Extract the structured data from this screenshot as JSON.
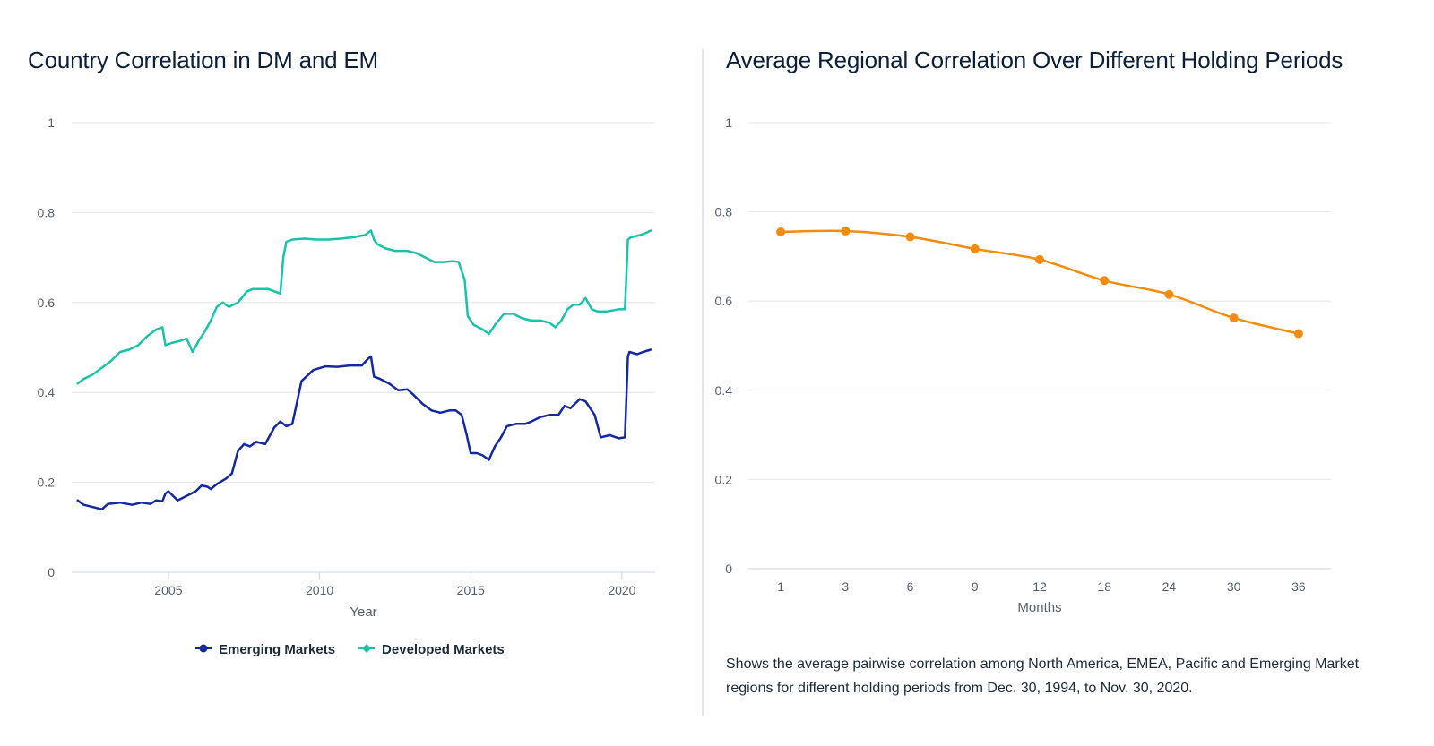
{
  "charts": [
    {
      "title": "Country Correlation in DM and EM",
      "chart_data": {
        "type": "line",
        "title": "Country Correlation in DM and EM",
        "xlabel": "Year",
        "ylabel": "",
        "xlim": [
          2001.8,
          2021.1
        ],
        "ylim": [
          0,
          1
        ],
        "x_ticks": [
          "2005",
          "2010",
          "2015",
          "2020"
        ],
        "y_ticks": [
          "0",
          "0.2",
          "0.4",
          "0.6",
          "0.8",
          "1"
        ],
        "grid": true,
        "legend_position": "bottom",
        "series": [
          {
            "name": "Emerging Markets",
            "color": "#1428a0",
            "marker": "circle",
            "x": [
              2002.0,
              2002.2,
              2002.5,
              2002.8,
              2003.0,
              2003.4,
              2003.8,
              2004.1,
              2004.4,
              2004.6,
              2004.8,
              2004.9,
              2005.0,
              2005.3,
              2005.6,
              2005.9,
              2006.1,
              2006.3,
              2006.4,
              2006.6,
              2006.9,
              2007.1,
              2007.3,
              2007.5,
              2007.7,
              2007.9,
              2008.2,
              2008.5,
              2008.7,
              2008.8,
              2008.9,
              2009.1,
              2009.4,
              2009.8,
              2010.2,
              2010.6,
              2011.0,
              2011.4,
              2011.6,
              2011.7,
              2011.8,
              2012.0,
              2012.3,
              2012.6,
              2012.9,
              2013.1,
              2013.4,
              2013.7,
              2014.0,
              2014.3,
              2014.5,
              2014.7,
              2014.85,
              2015.0,
              2015.2,
              2015.4,
              2015.6,
              2015.8,
              2016.0,
              2016.2,
              2016.5,
              2016.8,
              2017.0,
              2017.3,
              2017.6,
              2017.9,
              2018.1,
              2018.3,
              2018.6,
              2018.8,
              2018.9,
              2019.1,
              2019.3,
              2019.6,
              2019.9,
              2020.1,
              2020.2,
              2020.25,
              2020.5,
              2020.7,
              2020.95
            ],
            "y": [
              0.16,
              0.15,
              0.145,
              0.14,
              0.152,
              0.155,
              0.15,
              0.155,
              0.152,
              0.16,
              0.158,
              0.175,
              0.18,
              0.16,
              0.17,
              0.18,
              0.193,
              0.19,
              0.185,
              0.196,
              0.208,
              0.22,
              0.27,
              0.285,
              0.28,
              0.29,
              0.285,
              0.322,
              0.335,
              0.33,
              0.325,
              0.33,
              0.425,
              0.45,
              0.458,
              0.457,
              0.46,
              0.46,
              0.475,
              0.48,
              0.435,
              0.43,
              0.42,
              0.405,
              0.407,
              0.395,
              0.375,
              0.36,
              0.355,
              0.36,
              0.36,
              0.35,
              0.31,
              0.265,
              0.265,
              0.26,
              0.25,
              0.28,
              0.3,
              0.325,
              0.33,
              0.33,
              0.335,
              0.345,
              0.35,
              0.35,
              0.37,
              0.365,
              0.385,
              0.38,
              0.37,
              0.35,
              0.3,
              0.305,
              0.298,
              0.3,
              0.48,
              0.49,
              0.485,
              0.49,
              0.495
            ]
          },
          {
            "name": "Developed Markets",
            "color": "#19c2a8",
            "marker": "diamond",
            "x": [
              2002.0,
              2002.2,
              2002.5,
              2002.8,
              2003.1,
              2003.4,
              2003.7,
              2004.0,
              2004.3,
              2004.6,
              2004.8,
              2004.9,
              2005.1,
              2005.4,
              2005.6,
              2005.8,
              2006.0,
              2006.2,
              2006.4,
              2006.6,
              2006.8,
              2007.0,
              2007.3,
              2007.6,
              2007.8,
              2008.0,
              2008.3,
              2008.5,
              2008.7,
              2008.8,
              2008.9,
              2009.1,
              2009.5,
              2009.9,
              2010.3,
              2010.7,
              2011.1,
              2011.5,
              2011.7,
              2011.8,
              2011.9,
              2012.2,
              2012.5,
              2012.9,
              2013.2,
              2013.5,
              2013.8,
              2014.1,
              2014.4,
              2014.6,
              2014.8,
              2014.9,
              2015.1,
              2015.4,
              2015.6,
              2015.8,
              2016.1,
              2016.4,
              2016.7,
              2017.0,
              2017.3,
              2017.6,
              2017.8,
              2018.0,
              2018.2,
              2018.4,
              2018.6,
              2018.8,
              2019.0,
              2019.2,
              2019.5,
              2019.9,
              2020.1,
              2020.2,
              2020.3,
              2020.6,
              2020.8,
              2020.95
            ],
            "y": [
              0.42,
              0.43,
              0.44,
              0.455,
              0.47,
              0.49,
              0.495,
              0.505,
              0.525,
              0.54,
              0.545,
              0.505,
              0.51,
              0.515,
              0.52,
              0.49,
              0.515,
              0.535,
              0.56,
              0.59,
              0.6,
              0.59,
              0.6,
              0.625,
              0.63,
              0.63,
              0.63,
              0.625,
              0.62,
              0.7,
              0.735,
              0.74,
              0.742,
              0.74,
              0.74,
              0.742,
              0.745,
              0.75,
              0.76,
              0.74,
              0.73,
              0.72,
              0.715,
              0.715,
              0.71,
              0.7,
              0.69,
              0.69,
              0.692,
              0.69,
              0.65,
              0.57,
              0.55,
              0.54,
              0.53,
              0.55,
              0.575,
              0.575,
              0.565,
              0.56,
              0.56,
              0.555,
              0.545,
              0.56,
              0.585,
              0.595,
              0.595,
              0.61,
              0.585,
              0.58,
              0.58,
              0.585,
              0.585,
              0.74,
              0.745,
              0.75,
              0.755,
              0.76
            ]
          }
        ]
      }
    },
    {
      "title": "Average Regional Correlation Over Different Holding Periods",
      "caption": "Shows the average pairwise correlation among North America, EMEA, Pacific and Emerging Market regions for different holding periods from Dec. 30, 1994, to Nov. 30, 2020.",
      "chart_data": {
        "type": "line",
        "title": "Average Regional Correlation Over Different Holding Periods",
        "xlabel": "Months",
        "ylabel": "",
        "categories": [
          "1",
          "3",
          "6",
          "9",
          "12",
          "18",
          "24",
          "30",
          "36"
        ],
        "ylim": [
          0,
          1
        ],
        "y_ticks": [
          "0",
          "0.2",
          "0.4",
          "0.6",
          "0.8",
          "1"
        ],
        "grid": true,
        "series": [
          {
            "color": "#f28c0f",
            "values": [
              0.755,
              0.757,
              0.744,
              0.717,
              0.693,
              0.646,
              0.615,
              0.562,
              0.527
            ]
          }
        ]
      }
    }
  ]
}
